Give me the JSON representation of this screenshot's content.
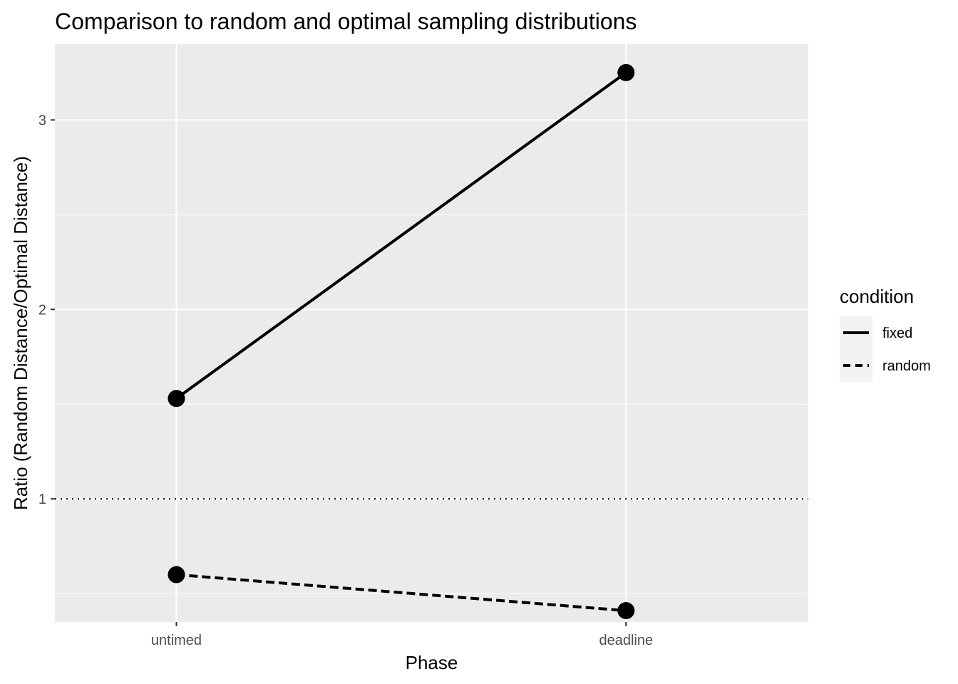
{
  "chart_data": {
    "type": "line",
    "title": "Comparison to random and optimal sampling distributions",
    "xlabel": "Phase",
    "ylabel": "Ratio (Random Distance/Optimal Distance)",
    "categories": [
      "untimed",
      "deadline"
    ],
    "y_ticks": [
      1,
      2,
      3
    ],
    "ylim": [
      0.35,
      3.4
    ],
    "series": [
      {
        "name": "fixed",
        "line_style": "solid",
        "values": [
          1.53,
          3.25
        ]
      },
      {
        "name": "random",
        "line_style": "dashed",
        "values": [
          0.6,
          0.41
        ]
      }
    ],
    "reference_line": {
      "y": 1,
      "style": "dotted"
    },
    "legend": {
      "title": "condition",
      "position": "right"
    },
    "grid": true,
    "colors": {
      "panel": "#ebebeb",
      "grid": "#ffffff",
      "line": "#000000",
      "legend_key": "#f2f2f2"
    }
  }
}
